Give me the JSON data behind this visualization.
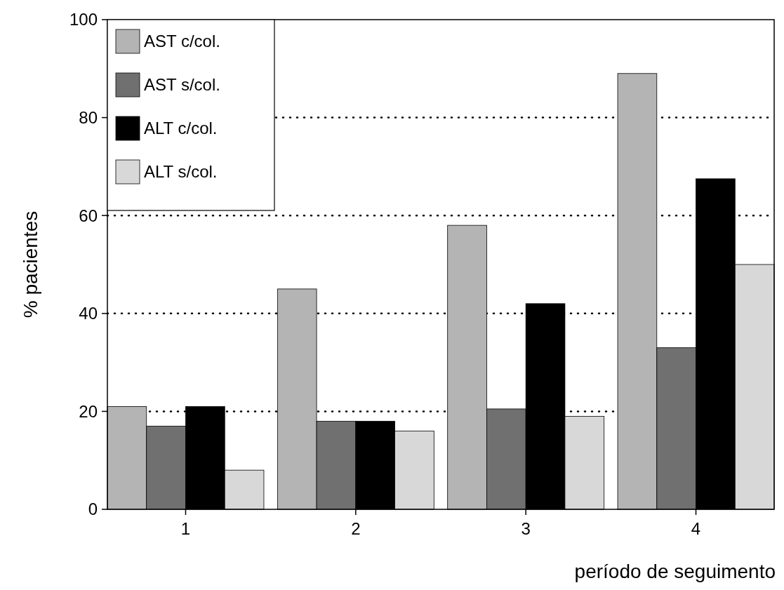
{
  "chart_data": {
    "type": "bar",
    "xlabel": "período de seguimento",
    "ylabel": "% pacientes",
    "categories": [
      "1",
      "2",
      "3",
      "4"
    ],
    "series": [
      {
        "name": "AST c/col.",
        "color": "#b4b4b4",
        "values": [
          21,
          45,
          58,
          89
        ]
      },
      {
        "name": "AST s/col.",
        "color": "#707070",
        "values": [
          17,
          18,
          20.5,
          33
        ]
      },
      {
        "name": "ALT c/col.",
        "color": "#000000",
        "values": [
          21,
          18,
          42,
          67.5
        ]
      },
      {
        "name": "ALT s/col.",
        "color": "#d8d8d8",
        "values": [
          8,
          16,
          19,
          50
        ]
      }
    ],
    "ylim": [
      0,
      100
    ],
    "yticks": [
      0,
      20,
      40,
      60,
      80,
      100
    ],
    "grid": "y",
    "legend": "top left"
  }
}
